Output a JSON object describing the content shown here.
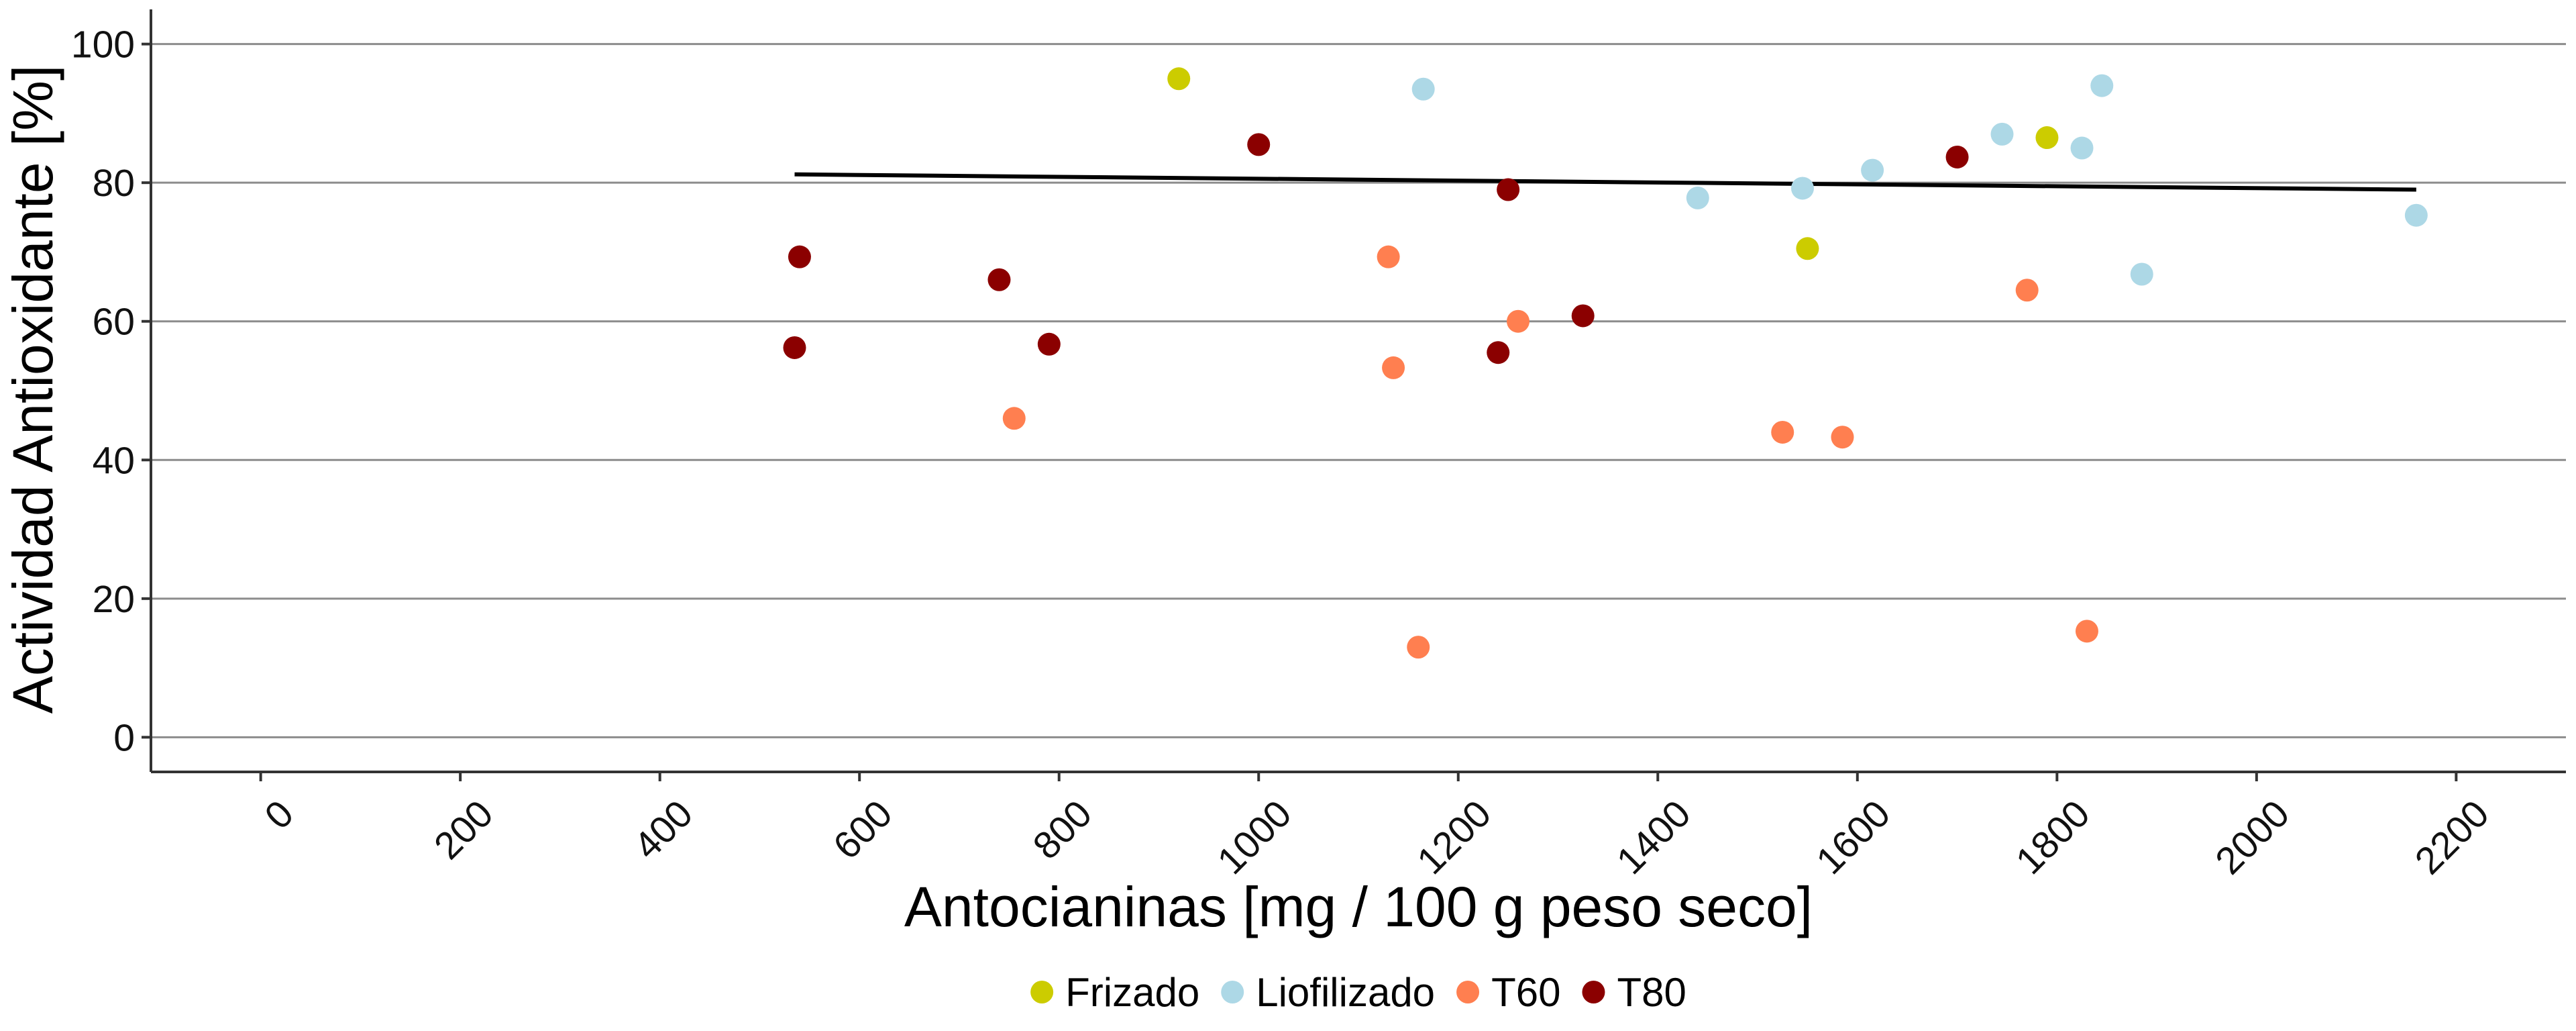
{
  "chart_data": {
    "type": "scatter",
    "title": "",
    "xlabel": "Antocianinas [mg / 100 g peso seco]",
    "ylabel": "Actividad Antioxidante [%]",
    "xlim": [
      -110,
      2310
    ],
    "ylim": [
      -5,
      105
    ],
    "xticks": [
      0,
      200,
      400,
      600,
      800,
      1000,
      1200,
      1400,
      1600,
      1800,
      2000,
      2200
    ],
    "yticks": [
      0,
      20,
      40,
      60,
      80,
      100
    ],
    "grid": "horizontal-major",
    "legend_position": "bottom",
    "series": [
      {
        "name": "Frizado",
        "color": "#cccc00",
        "points": [
          {
            "x": 920,
            "y": 95.0
          },
          {
            "x": 1550,
            "y": 70.5
          },
          {
            "x": 1790,
            "y": 86.5
          }
        ]
      },
      {
        "name": "Liofilizado",
        "color": "#add8e6",
        "points": [
          {
            "x": 1165,
            "y": 93.5
          },
          {
            "x": 1440,
            "y": 77.8
          },
          {
            "x": 1545,
            "y": 79.2
          },
          {
            "x": 1615,
            "y": 81.8
          },
          {
            "x": 1745,
            "y": 87.0
          },
          {
            "x": 1825,
            "y": 85.0
          },
          {
            "x": 1845,
            "y": 94.0
          },
          {
            "x": 1885,
            "y": 66.8
          },
          {
            "x": 2160,
            "y": 75.3
          }
        ]
      },
      {
        "name": "T60",
        "color": "#ff7f50",
        "points": [
          {
            "x": 755,
            "y": 46.0
          },
          {
            "x": 1130,
            "y": 69.3
          },
          {
            "x": 1135,
            "y": 53.3
          },
          {
            "x": 1160,
            "y": 13.0
          },
          {
            "x": 1260,
            "y": 60.0
          },
          {
            "x": 1525,
            "y": 44.0
          },
          {
            "x": 1585,
            "y": 43.3
          },
          {
            "x": 1770,
            "y": 64.5
          },
          {
            "x": 1830,
            "y": 15.3
          }
        ]
      },
      {
        "name": "T80",
        "color": "#8b0000",
        "points": [
          {
            "x": 535,
            "y": 56.2
          },
          {
            "x": 540,
            "y": 69.3
          },
          {
            "x": 740,
            "y": 66.0
          },
          {
            "x": 790,
            "y": 56.7
          },
          {
            "x": 1000,
            "y": 85.5
          },
          {
            "x": 1240,
            "y": 55.5
          },
          {
            "x": 1250,
            "y": 79.0
          },
          {
            "x": 1325,
            "y": 60.8
          },
          {
            "x": 1700,
            "y": 83.7
          }
        ]
      }
    ],
    "trendline": {
      "type": "linear",
      "color": "#000000",
      "x_start": 535,
      "y_start": 81.2,
      "x_end": 2160,
      "y_end": 79.0
    }
  }
}
